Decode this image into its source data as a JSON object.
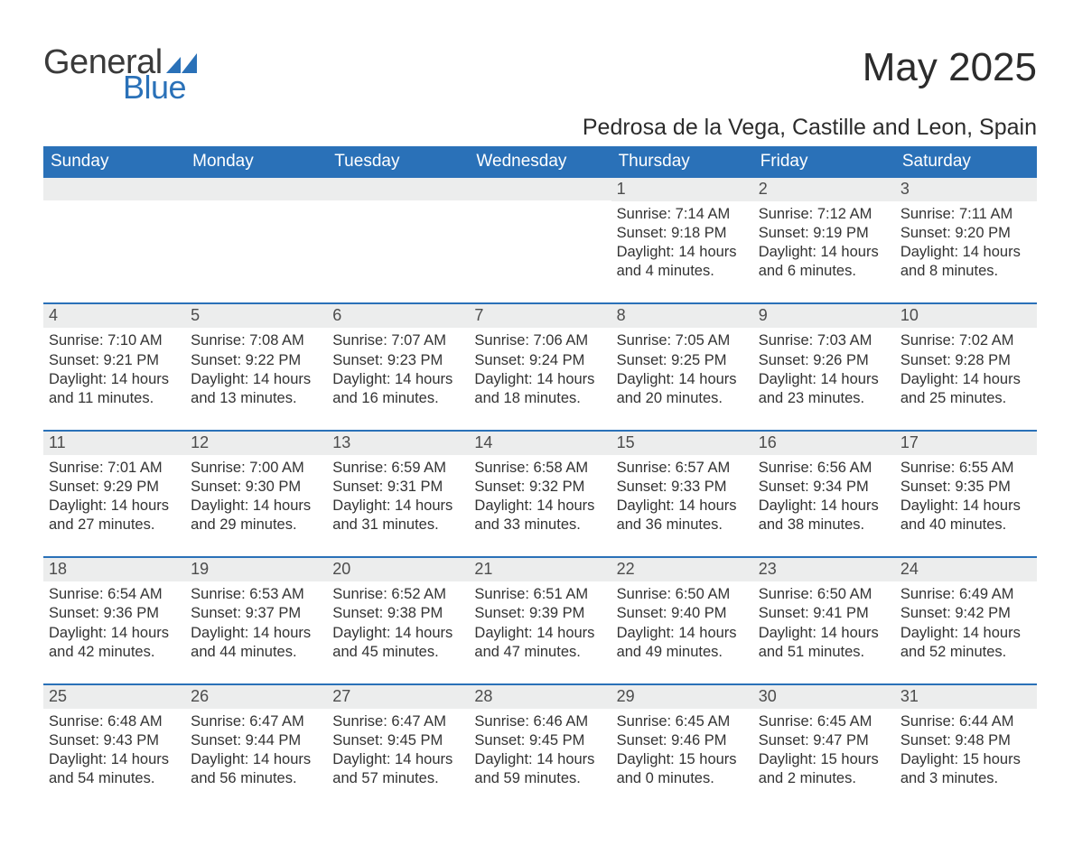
{
  "brand": {
    "word1": "General",
    "word2": "Blue",
    "accent_color": "#2a71b8"
  },
  "title": "May 2025",
  "location": "Pedrosa de la Vega, Castille and Leon, Spain",
  "header_bg": "#2a71b8",
  "header_text": "#ffffff",
  "daynum_bg": "#eceded",
  "weekdays": [
    "Sunday",
    "Monday",
    "Tuesday",
    "Wednesday",
    "Thursday",
    "Friday",
    "Saturday"
  ],
  "weeks": [
    [
      {
        "empty": true
      },
      {
        "empty": true
      },
      {
        "empty": true
      },
      {
        "empty": true
      },
      {
        "num": "1",
        "sunrise": "Sunrise: 7:14 AM",
        "sunset": "Sunset: 9:18 PM",
        "daylight": "Daylight: 14 hours and 4 minutes."
      },
      {
        "num": "2",
        "sunrise": "Sunrise: 7:12 AM",
        "sunset": "Sunset: 9:19 PM",
        "daylight": "Daylight: 14 hours and 6 minutes."
      },
      {
        "num": "3",
        "sunrise": "Sunrise: 7:11 AM",
        "sunset": "Sunset: 9:20 PM",
        "daylight": "Daylight: 14 hours and 8 minutes."
      }
    ],
    [
      {
        "num": "4",
        "sunrise": "Sunrise: 7:10 AM",
        "sunset": "Sunset: 9:21 PM",
        "daylight": "Daylight: 14 hours and 11 minutes."
      },
      {
        "num": "5",
        "sunrise": "Sunrise: 7:08 AM",
        "sunset": "Sunset: 9:22 PM",
        "daylight": "Daylight: 14 hours and 13 minutes."
      },
      {
        "num": "6",
        "sunrise": "Sunrise: 7:07 AM",
        "sunset": "Sunset: 9:23 PM",
        "daylight": "Daylight: 14 hours and 16 minutes."
      },
      {
        "num": "7",
        "sunrise": "Sunrise: 7:06 AM",
        "sunset": "Sunset: 9:24 PM",
        "daylight": "Daylight: 14 hours and 18 minutes."
      },
      {
        "num": "8",
        "sunrise": "Sunrise: 7:05 AM",
        "sunset": "Sunset: 9:25 PM",
        "daylight": "Daylight: 14 hours and 20 minutes."
      },
      {
        "num": "9",
        "sunrise": "Sunrise: 7:03 AM",
        "sunset": "Sunset: 9:26 PM",
        "daylight": "Daylight: 14 hours and 23 minutes."
      },
      {
        "num": "10",
        "sunrise": "Sunrise: 7:02 AM",
        "sunset": "Sunset: 9:28 PM",
        "daylight": "Daylight: 14 hours and 25 minutes."
      }
    ],
    [
      {
        "num": "11",
        "sunrise": "Sunrise: 7:01 AM",
        "sunset": "Sunset: 9:29 PM",
        "daylight": "Daylight: 14 hours and 27 minutes."
      },
      {
        "num": "12",
        "sunrise": "Sunrise: 7:00 AM",
        "sunset": "Sunset: 9:30 PM",
        "daylight": "Daylight: 14 hours and 29 minutes."
      },
      {
        "num": "13",
        "sunrise": "Sunrise: 6:59 AM",
        "sunset": "Sunset: 9:31 PM",
        "daylight": "Daylight: 14 hours and 31 minutes."
      },
      {
        "num": "14",
        "sunrise": "Sunrise: 6:58 AM",
        "sunset": "Sunset: 9:32 PM",
        "daylight": "Daylight: 14 hours and 33 minutes."
      },
      {
        "num": "15",
        "sunrise": "Sunrise: 6:57 AM",
        "sunset": "Sunset: 9:33 PM",
        "daylight": "Daylight: 14 hours and 36 minutes."
      },
      {
        "num": "16",
        "sunrise": "Sunrise: 6:56 AM",
        "sunset": "Sunset: 9:34 PM",
        "daylight": "Daylight: 14 hours and 38 minutes."
      },
      {
        "num": "17",
        "sunrise": "Sunrise: 6:55 AM",
        "sunset": "Sunset: 9:35 PM",
        "daylight": "Daylight: 14 hours and 40 minutes."
      }
    ],
    [
      {
        "num": "18",
        "sunrise": "Sunrise: 6:54 AM",
        "sunset": "Sunset: 9:36 PM",
        "daylight": "Daylight: 14 hours and 42 minutes."
      },
      {
        "num": "19",
        "sunrise": "Sunrise: 6:53 AM",
        "sunset": "Sunset: 9:37 PM",
        "daylight": "Daylight: 14 hours and 44 minutes."
      },
      {
        "num": "20",
        "sunrise": "Sunrise: 6:52 AM",
        "sunset": "Sunset: 9:38 PM",
        "daylight": "Daylight: 14 hours and 45 minutes."
      },
      {
        "num": "21",
        "sunrise": "Sunrise: 6:51 AM",
        "sunset": "Sunset: 9:39 PM",
        "daylight": "Daylight: 14 hours and 47 minutes."
      },
      {
        "num": "22",
        "sunrise": "Sunrise: 6:50 AM",
        "sunset": "Sunset: 9:40 PM",
        "daylight": "Daylight: 14 hours and 49 minutes."
      },
      {
        "num": "23",
        "sunrise": "Sunrise: 6:50 AM",
        "sunset": "Sunset: 9:41 PM",
        "daylight": "Daylight: 14 hours and 51 minutes."
      },
      {
        "num": "24",
        "sunrise": "Sunrise: 6:49 AM",
        "sunset": "Sunset: 9:42 PM",
        "daylight": "Daylight: 14 hours and 52 minutes."
      }
    ],
    [
      {
        "num": "25",
        "sunrise": "Sunrise: 6:48 AM",
        "sunset": "Sunset: 9:43 PM",
        "daylight": "Daylight: 14 hours and 54 minutes."
      },
      {
        "num": "26",
        "sunrise": "Sunrise: 6:47 AM",
        "sunset": "Sunset: 9:44 PM",
        "daylight": "Daylight: 14 hours and 56 minutes."
      },
      {
        "num": "27",
        "sunrise": "Sunrise: 6:47 AM",
        "sunset": "Sunset: 9:45 PM",
        "daylight": "Daylight: 14 hours and 57 minutes."
      },
      {
        "num": "28",
        "sunrise": "Sunrise: 6:46 AM",
        "sunset": "Sunset: 9:45 PM",
        "daylight": "Daylight: 14 hours and 59 minutes."
      },
      {
        "num": "29",
        "sunrise": "Sunrise: 6:45 AM",
        "sunset": "Sunset: 9:46 PM",
        "daylight": "Daylight: 15 hours and 0 minutes."
      },
      {
        "num": "30",
        "sunrise": "Sunrise: 6:45 AM",
        "sunset": "Sunset: 9:47 PM",
        "daylight": "Daylight: 15 hours and 2 minutes."
      },
      {
        "num": "31",
        "sunrise": "Sunrise: 6:44 AM",
        "sunset": "Sunset: 9:48 PM",
        "daylight": "Daylight: 15 hours and 3 minutes."
      }
    ]
  ]
}
